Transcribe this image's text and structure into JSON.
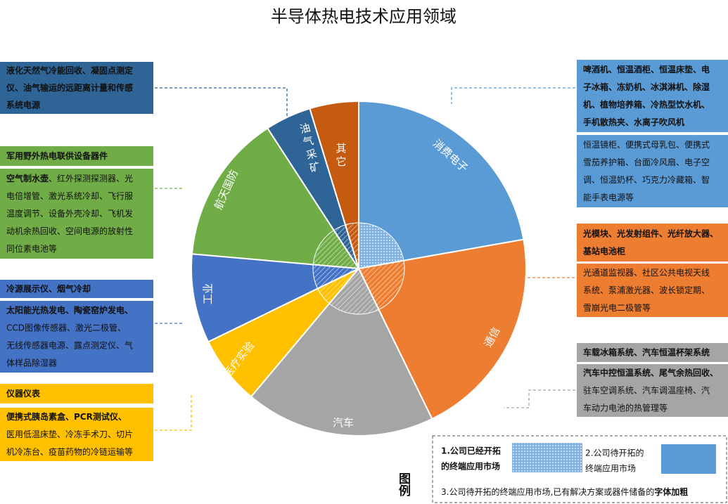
{
  "title": "半导体热电技术应用领域",
  "segments": [
    {
      "label": "消费电子"
    },
    {
      "label": "通信"
    },
    {
      "label": "汽车"
    },
    {
      "label": "医疗实验"
    },
    {
      "label": "工业"
    },
    {
      "label": "航天国防"
    },
    {
      "label": "油气采矿"
    },
    {
      "label": "其它"
    }
  ],
  "boxes": [
    {
      "lines": [
        {
          "b": "液化天然气冷能回收、凝固点测定"
        },
        {
          "b": "仪、油气输运的远距离计量和传感"
        },
        {
          "b": "系统电源"
        }
      ]
    },
    {
      "lines": [
        {
          "b": "军用野外热电联供设备器件"
        }
      ]
    },
    {
      "lines": [
        {
          "b": "空气制水壶",
          "t": "、红外探测探测器、光"
        },
        {
          "t": "电倍增管、激光系统冷却、飞行服"
        },
        {
          "t": "温度调节、设备外壳冷却、飞机发"
        },
        {
          "t": "动机余热回收、空间电源的放射性"
        },
        {
          "t": "同位素电池等"
        }
      ]
    },
    {
      "lines": [
        {
          "b": "冷源展示仪、烟气冷却"
        }
      ]
    },
    {
      "lines": [
        {
          "b": "太阳能光热发电、陶瓷窑炉发电、"
        },
        {
          "t": "CCD图像传感器、激光二极管、"
        },
        {
          "t": "无线传感器电源、露点测定仪、气"
        },
        {
          "t": "体样品除湿器"
        }
      ]
    },
    {
      "lines": [
        {
          "b": "仪器仪表"
        }
      ]
    },
    {
      "lines": [
        {
          "b": "便携式胰岛素盒、PCR测试仪、"
        },
        {
          "t": "医用低温床垫、冷冻手术刀、切片"
        },
        {
          "t": "机冷冻台、疫苗药物的冷链运输等"
        }
      ]
    },
    {
      "lines": [
        {
          "b": "啤酒机、恒温酒柜、恒温床垫、电"
        },
        {
          "b": "子冰箱、冻奶机、冰淇淋机、除湿"
        },
        {
          "b": "机、植物培养箱、冷热型饮水机、"
        },
        {
          "b": "手机散热夹、水离子吹风机"
        }
      ]
    },
    {
      "lines": [
        {
          "t": "恒温镜柜、便携式母乳包、便携式"
        },
        {
          "t": "雪茄养护箱、台面冷风扇、电子空"
        },
        {
          "t": "调、恒温奶杯、巧克力冷藏箱、智"
        },
        {
          "t": "能手表电源等"
        }
      ]
    },
    {
      "lines": [
        {
          "b": "光模块、光发射组件、光纤放大器、"
        },
        {
          "b": "基站电池柜"
        }
      ]
    },
    {
      "lines": [
        {
          "t": "光通道监视器、社区公共电视天线"
        },
        {
          "t": "系统、泵浦激光器、波长锁定期、"
        },
        {
          "t": "雪崩光电二极管等"
        }
      ]
    },
    {
      "lines": [
        {
          "b": "车载冰箱系统、汽车恒温杯架系统"
        }
      ]
    },
    {
      "lines": [
        {
          "b": "汽车中控恒温系统、尾气余热回收、"
        },
        {
          "t": "驻车空调系统、汽车调温座椅、汽"
        },
        {
          "t": "车动力电池的热管理等"
        }
      ]
    }
  ],
  "legend": {
    "title": "图例",
    "item1": [
      "1.公司已经开拓",
      "的终端应用市场"
    ],
    "item2": [
      "2.公司待开拓的",
      "终端应用市场"
    ],
    "item3": {
      "t": "3.公司待开拓的终端应用市场,已有解决方案或器件储备的",
      "b": "字体加粗"
    }
  }
}
